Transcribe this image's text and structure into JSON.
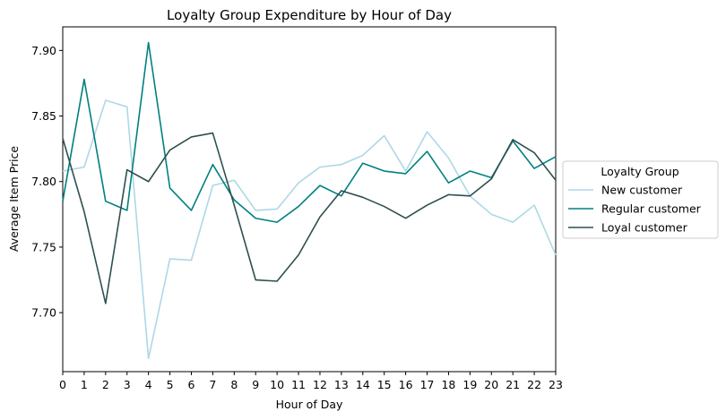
{
  "chart_data": {
    "type": "line",
    "title": "Loyalty Group Expenditure by Hour of Day",
    "xlabel": "Hour of Day",
    "ylabel": "Average Item Price",
    "x": [
      0,
      1,
      2,
      3,
      4,
      5,
      6,
      7,
      8,
      9,
      10,
      11,
      12,
      13,
      14,
      15,
      16,
      17,
      18,
      19,
      20,
      21,
      22,
      23
    ],
    "xlim": [
      0,
      23
    ],
    "ylim": [
      7.655,
      7.918
    ],
    "xticks": [
      "0",
      "1",
      "2",
      "3",
      "4",
      "5",
      "6",
      "7",
      "8",
      "9",
      "10",
      "11",
      "12",
      "13",
      "14",
      "15",
      "16",
      "17",
      "18",
      "19",
      "20",
      "21",
      "22",
      "23"
    ],
    "yticks": [
      7.7,
      7.75,
      7.8,
      7.85,
      7.9
    ],
    "ytick_labels": [
      "7.70",
      "7.75",
      "7.80",
      "7.85",
      "7.90"
    ],
    "grid": false,
    "legend": {
      "title": "Loyalty Group",
      "placement": "outside-right"
    },
    "series": [
      {
        "name": "New customer",
        "color": "#add8e6",
        "values": [
          7.808,
          7.811,
          7.862,
          7.857,
          7.665,
          7.741,
          7.74,
          7.797,
          7.801,
          7.778,
          7.779,
          7.799,
          7.811,
          7.813,
          7.82,
          7.835,
          7.808,
          7.838,
          7.818,
          7.789,
          7.775,
          7.769,
          7.782,
          7.744
        ]
      },
      {
        "name": "Regular customer",
        "color": "#008080",
        "values": [
          7.785,
          7.878,
          7.785,
          7.778,
          7.906,
          7.795,
          7.778,
          7.813,
          7.786,
          7.772,
          7.769,
          7.781,
          7.797,
          7.789,
          7.814,
          7.808,
          7.806,
          7.823,
          7.799,
          7.808,
          7.803,
          7.831,
          7.81,
          7.819
        ]
      },
      {
        "name": "Loyal customer",
        "color": "#2f4f4f",
        "values": [
          7.833,
          7.777,
          7.707,
          7.809,
          7.8,
          7.824,
          7.834,
          7.837,
          7.782,
          7.725,
          7.724,
          7.744,
          7.773,
          7.793,
          7.788,
          7.781,
          7.772,
          7.782,
          7.79,
          7.789,
          7.802,
          7.832,
          7.822,
          7.801
        ]
      }
    ]
  }
}
